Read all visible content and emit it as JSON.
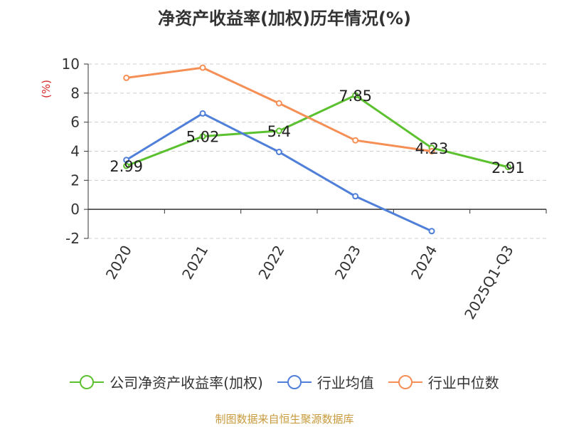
{
  "chart_data": {
    "type": "line",
    "title": "净资产收益率(加权)历年情况(%)",
    "ylabel": "(%)",
    "categories": [
      "2020",
      "2021",
      "2022",
      "2023",
      "2024",
      "2025Q1-Q3"
    ],
    "ylim": [
      -2,
      10
    ],
    "yticks": [
      -2,
      0,
      2,
      4,
      6,
      8,
      10
    ],
    "grid": true,
    "legend_position": "bottom",
    "series": [
      {
        "name": "公司净资产收益率(加权)",
        "color": "#5cc12f",
        "values": [
          2.99,
          5.02,
          5.4,
          7.85,
          4.23,
          2.91
        ],
        "labels": [
          "2.99",
          "5.02",
          "5.4",
          "7.85",
          "4.23",
          "2.91"
        ]
      },
      {
        "name": "行业均值",
        "color": "#4f7fd8",
        "values": [
          3.4,
          6.6,
          3.95,
          0.9,
          -1.5,
          null
        ]
      },
      {
        "name": "行业中位数",
        "color": "#f58f56",
        "values": [
          9.05,
          9.75,
          7.3,
          4.75,
          4.0,
          null
        ]
      }
    ]
  },
  "footer": {
    "source": "制图数据来自恒生聚源数据库"
  }
}
